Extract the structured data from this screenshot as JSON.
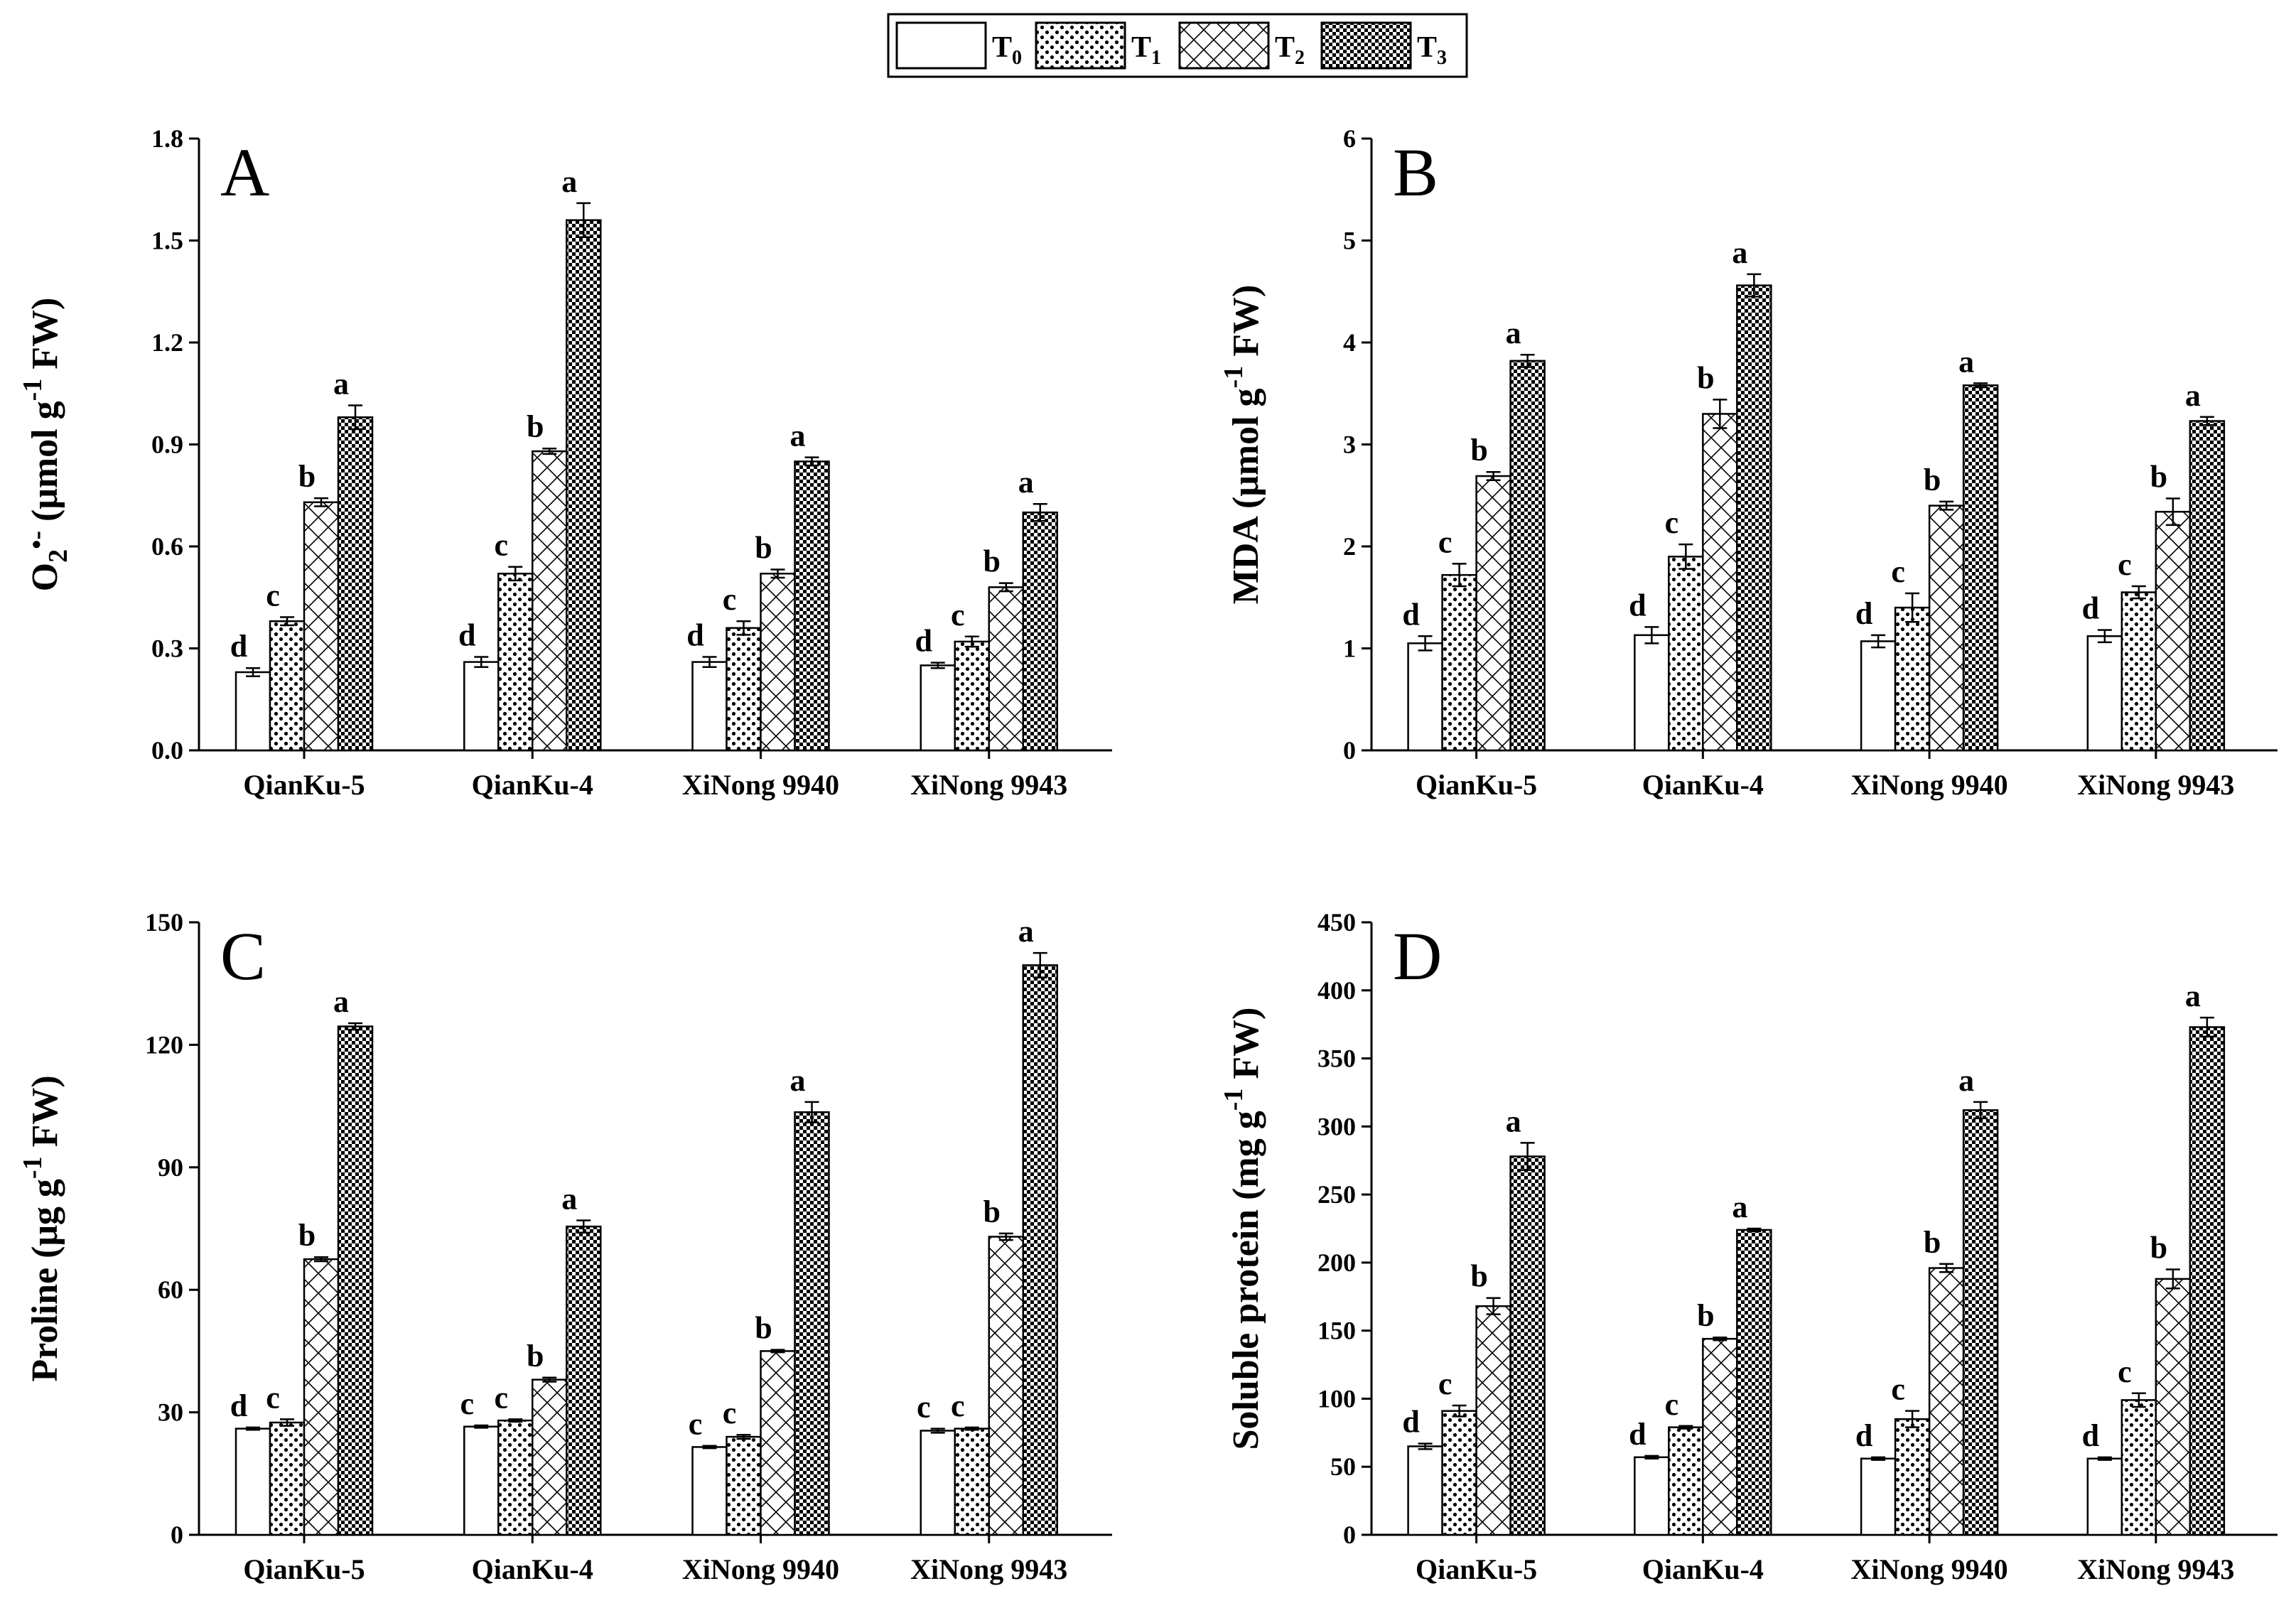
{
  "legend": {
    "items": [
      {
        "key": "T0",
        "main": "T",
        "sub": "0",
        "pattern": "white"
      },
      {
        "key": "T1",
        "main": "T",
        "sub": "1",
        "pattern": "dots"
      },
      {
        "key": "T2",
        "main": "T",
        "sub": "2",
        "pattern": "cross"
      },
      {
        "key": "T3",
        "main": "T",
        "sub": "3",
        "pattern": "checker"
      }
    ]
  },
  "chart_data": [
    {
      "type": "bar",
      "panel": "A",
      "ylabel_parts": [
        "O",
        "2",
        "•-",
        " (μmol g",
        "-1",
        " FW)"
      ],
      "categories": [
        "QianKu-5",
        "QianKu-4",
        "XiNong 9940",
        "XiNong 9943"
      ],
      "ylim": [
        0,
        1.8
      ],
      "yticks": [
        "0.0",
        "0.3",
        "0.6",
        "0.9",
        "1.2",
        "1.5",
        "1.8"
      ],
      "tick_values": [
        0,
        0.3,
        0.6,
        0.9,
        1.2,
        1.5,
        1.8
      ],
      "series": [
        {
          "name": "T0",
          "values": [
            0.23,
            0.26,
            0.26,
            0.25
          ],
          "errors": [
            0.012,
            0.015,
            0.015,
            0.008
          ],
          "labels": [
            "d",
            "d",
            "d",
            "d"
          ]
        },
        {
          "name": "T1",
          "values": [
            0.38,
            0.52,
            0.36,
            0.32
          ],
          "errors": [
            0.012,
            0.02,
            0.02,
            0.015
          ],
          "labels": [
            "c",
            "c",
            "c",
            "c"
          ]
        },
        {
          "name": "T2",
          "values": [
            0.73,
            0.88,
            0.52,
            0.48
          ],
          "errors": [
            0.012,
            0.008,
            0.012,
            0.012
          ],
          "labels": [
            "b",
            "b",
            "b",
            "b"
          ]
        },
        {
          "name": "T3",
          "values": [
            0.98,
            1.56,
            0.85,
            0.7
          ],
          "errors": [
            0.035,
            0.05,
            0.012,
            0.025
          ],
          "labels": [
            "a",
            "a",
            "a",
            "a"
          ]
        }
      ]
    },
    {
      "type": "bar",
      "panel": "B",
      "ylabel_parts": [
        "MDA (μmol g",
        "-1",
        " FW)"
      ],
      "categories": [
        "QianKu-5",
        "QianKu-4",
        "XiNong 9940",
        "XiNong 9943"
      ],
      "ylim": [
        0,
        6
      ],
      "yticks": [
        "0",
        "1",
        "2",
        "3",
        "4",
        "5",
        "6"
      ],
      "tick_values": [
        0,
        1,
        2,
        3,
        4,
        5,
        6
      ],
      "series": [
        {
          "name": "T0",
          "values": [
            1.05,
            1.13,
            1.07,
            1.12
          ],
          "errors": [
            0.07,
            0.08,
            0.06,
            0.06
          ],
          "labels": [
            "d",
            "d",
            "d",
            "d"
          ]
        },
        {
          "name": "T1",
          "values": [
            1.72,
            1.9,
            1.4,
            1.55
          ],
          "errors": [
            0.11,
            0.12,
            0.14,
            0.06
          ],
          "labels": [
            "c",
            "c",
            "c",
            "c"
          ]
        },
        {
          "name": "T2",
          "values": [
            2.69,
            3.3,
            2.4,
            2.34
          ],
          "errors": [
            0.04,
            0.14,
            0.04,
            0.13
          ],
          "labels": [
            "b",
            "b",
            "b",
            "b"
          ]
        },
        {
          "name": "T3",
          "values": [
            3.82,
            4.56,
            3.58,
            3.23
          ],
          "errors": [
            0.06,
            0.11,
            0.02,
            0.04
          ],
          "labels": [
            "a",
            "a",
            "a",
            "a"
          ]
        }
      ]
    },
    {
      "type": "bar",
      "panel": "C",
      "ylabel_parts": [
        "Proline (μg g",
        "-1",
        " FW)"
      ],
      "categories": [
        "QianKu-5",
        "QianKu-4",
        "XiNong 9940",
        "XiNong 9943"
      ],
      "ylim": [
        0,
        150
      ],
      "yticks": [
        "0",
        "30",
        "60",
        "90",
        "120",
        "150"
      ],
      "tick_values": [
        0,
        30,
        60,
        90,
        120,
        150
      ],
      "series": [
        {
          "name": "T0",
          "values": [
            26,
            26.5,
            21.5,
            25.5
          ],
          "errors": [
            0.3,
            0.3,
            0.3,
            0.5
          ],
          "labels": [
            "d",
            "c",
            "c",
            "c"
          ]
        },
        {
          "name": "T1",
          "values": [
            27.5,
            28,
            24,
            26
          ],
          "errors": [
            0.8,
            0.3,
            0.5,
            0.3
          ],
          "labels": [
            "c",
            "c",
            "c",
            "c"
          ]
        },
        {
          "name": "T2",
          "values": [
            67.5,
            38,
            45,
            73
          ],
          "errors": [
            0.5,
            0.5,
            0.3,
            0.8
          ],
          "labels": [
            "b",
            "b",
            "b",
            "b"
          ]
        },
        {
          "name": "T3",
          "values": [
            124.5,
            75.5,
            103.5,
            139.5
          ],
          "errors": [
            0.8,
            1.5,
            2.5,
            3
          ],
          "labels": [
            "a",
            "a",
            "a",
            "a"
          ]
        }
      ]
    },
    {
      "type": "bar",
      "panel": "D",
      "ylabel_parts": [
        "Soluble protein (mg g",
        "-1",
        " FW)"
      ],
      "categories": [
        "QianKu-5",
        "QianKu-4",
        "XiNong 9940",
        "XiNong 9943"
      ],
      "ylim": [
        0,
        450
      ],
      "yticks": [
        "0",
        "50",
        "100",
        "150",
        "200",
        "250",
        "300",
        "350",
        "400",
        "450"
      ],
      "tick_values": [
        0,
        50,
        100,
        150,
        200,
        250,
        300,
        350,
        400,
        450
      ],
      "series": [
        {
          "name": "T0",
          "values": [
            65,
            57,
            56,
            56
          ],
          "errors": [
            2,
            1,
            1,
            1
          ],
          "labels": [
            "d",
            "d",
            "d",
            "d"
          ]
        },
        {
          "name": "T1",
          "values": [
            91,
            79,
            85,
            99
          ],
          "errors": [
            4,
            1,
            6,
            5
          ],
          "labels": [
            "c",
            "c",
            "c",
            "c"
          ]
        },
        {
          "name": "T2",
          "values": [
            168,
            144,
            196,
            188
          ],
          "errors": [
            6,
            1,
            3,
            7
          ],
          "labels": [
            "b",
            "b",
            "b",
            "b"
          ]
        },
        {
          "name": "T3",
          "values": [
            278,
            224,
            312,
            373
          ],
          "errors": [
            10,
            1,
            6,
            7
          ],
          "labels": [
            "a",
            "a",
            "a",
            "a"
          ]
        }
      ]
    }
  ]
}
